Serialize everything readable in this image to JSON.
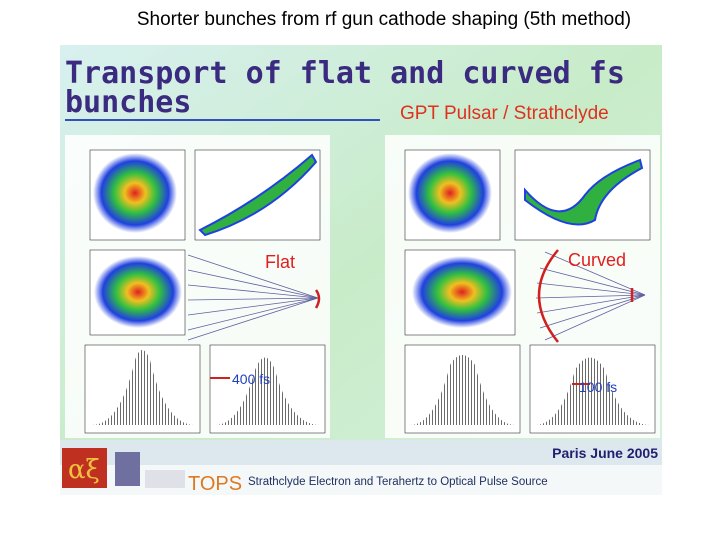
{
  "header": {
    "title": "Shorter bunches from rf gun cathode shaping (5th method)"
  },
  "slide": {
    "title_line1": "Transport of flat and curved fs",
    "title_line2": "bunches",
    "subtitle": "GPT Pulsar / Strathclyde",
    "labels": {
      "flat": "Flat",
      "curved": "Curved",
      "flat_length": "400 fs",
      "curved_length": "100 fs"
    },
    "footer": {
      "event": "Paris June 2005",
      "logo": "TOPS",
      "project": "Strathclyde Electron and Terahertz to Optical Pulse Source"
    }
  }
}
